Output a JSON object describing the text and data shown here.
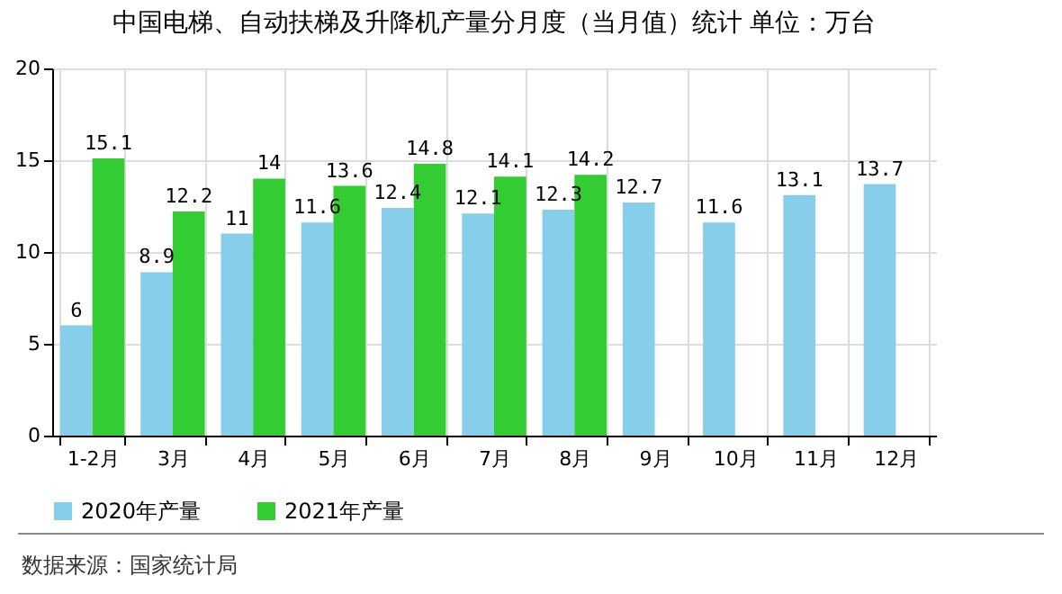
{
  "chart_data": {
    "type": "bar",
    "title": "中国电梯、自动扶梯及升降机产量分月度（当月值）统计 单位：万台",
    "categories": [
      "1-2月",
      "3月",
      "4月",
      "5月",
      "6月",
      "7月",
      "8月",
      "9月",
      "10月",
      "11月",
      "12月"
    ],
    "series": [
      {
        "name": "2020年产量",
        "color": "#87ceeb",
        "values": [
          6,
          8.9,
          11,
          11.6,
          12.4,
          12.1,
          12.3,
          12.7,
          11.6,
          13.1,
          13.7
        ]
      },
      {
        "name": "2021年产量",
        "color": "#33cc33",
        "values": [
          15.1,
          12.2,
          14,
          13.6,
          14.8,
          14.1,
          14.2,
          null,
          null,
          null,
          null
        ]
      }
    ],
    "ylim": [
      0,
      20
    ],
    "yticks": [
      0,
      5,
      10,
      15,
      20
    ],
    "grid": true,
    "legend": "bottom",
    "data_labels": true,
    "annotations": [
      "数据来源：国家统计局"
    ]
  }
}
